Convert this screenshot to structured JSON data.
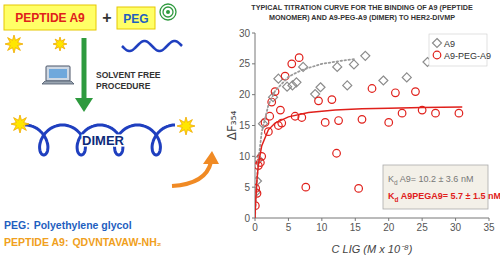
{
  "chart_data": {
    "type": "scatter",
    "title": "TYPICAL TITRATION CURVE FOR THE BINDING OF A9 (PEPTIDE MONOMER) AND A9-PEG-A9 (DIMER) TO HER2-DIVMP",
    "x_label": "C LIG (M x 10⁻⁸)",
    "y_label": "ΔF₃₅₄",
    "xlim": [
      0,
      35
    ],
    "ylim": [
      0,
      30
    ],
    "xticks": [
      0,
      5,
      10,
      15,
      20,
      25,
      30,
      35
    ],
    "yticks": [
      0,
      5,
      10,
      15,
      20,
      25,
      30
    ],
    "legend": "top-right",
    "annotations": [
      "Kd A9= 10.2 ± 3.6 nM",
      "Kd A9PEGA9= 5.7 ± 1.5 nM"
    ],
    "series": [
      {
        "name": "A9",
        "color": "#8c8c8c",
        "marker": "diamond",
        "x": [
          0.1,
          0.3,
          0.5,
          1.2,
          2.7,
          3.5,
          4.8,
          5.6,
          6.2,
          7.2,
          9.0,
          9.8,
          12.3,
          13.8,
          14.8,
          16.5,
          19.2,
          22.7,
          25.8
        ],
        "values": [
          4.2,
          6.0,
          9.5,
          15.3,
          19.6,
          22.6,
          21.3,
          21.5,
          22.0,
          24.5,
          20.1,
          21.2,
          24.5,
          21.5,
          24.9,
          26.3,
          22.3,
          22.8,
          25.3
        ]
      },
      {
        "name": "A9-PEG-A9",
        "color": "#e0201b",
        "marker": "circle",
        "x": [
          0.05,
          0.1,
          0.3,
          0.5,
          0.8,
          1.0,
          1.5,
          2.0,
          2.2,
          2.5,
          3.0,
          3.5,
          3.8,
          4.0,
          4.5,
          5.5,
          6.0,
          6.6,
          7.0,
          7.6,
          9.5,
          10.5,
          11.5,
          12.2,
          12.5,
          15.5,
          16.0,
          17.5,
          20.0,
          21.0,
          22.0,
          24.0,
          25.0,
          27.0,
          30.5
        ],
        "values": [
          2.0,
          4.8,
          4.0,
          8.5,
          9.0,
          10.0,
          15.5,
          14.0,
          16.5,
          18.8,
          20.5,
          15.0,
          17.5,
          15.4,
          23.0,
          25.0,
          16.5,
          26.0,
          16.3,
          5.0,
          19.0,
          15.5,
          19.2,
          10.5,
          15.8,
          4.8,
          16.0,
          21.0,
          15.5,
          20.3,
          17.0,
          20.5,
          17.5,
          17.0,
          17.0
        ]
      },
      {
        "type": "line",
        "color": "#9a9a9a",
        "line_style": "dotted",
        "x": [
          0,
          0.1,
          0.3,
          0.5,
          1,
          2,
          3,
          5,
          7,
          10,
          13,
          15
        ],
        "values": [
          0,
          2.5,
          6.3,
          9.2,
          13.9,
          18.3,
          20.6,
          22.9,
          24.0,
          25.0,
          25.5,
          25.8
        ]
      },
      {
        "type": "line",
        "color": "#e0201b",
        "line_style": "solid",
        "x": [
          0,
          0.05,
          0.1,
          0.3,
          0.5,
          1,
          2,
          3,
          5,
          8,
          12,
          16,
          20,
          25,
          31
        ],
        "values": [
          0,
          1.5,
          2.7,
          6.3,
          8.6,
          11.7,
          14.3,
          15.4,
          16.4,
          17.1,
          17.5,
          17.7,
          17.8,
          17.9,
          18.0
        ]
      }
    ]
  },
  "diagram": {
    "peptide": "PEPTIDE A9",
    "plus": "+",
    "peg": "PEG",
    "procedure": [
      "SOLVENT FREE",
      "PROCEDURE"
    ],
    "product": "DIMER",
    "glossary": [
      {
        "term": "PEG:",
        "text": "Polyethylene glycol"
      },
      {
        "term": "PEPTIDE A9:",
        "text": "QDVNTAVAW-NH₂"
      }
    ]
  }
}
